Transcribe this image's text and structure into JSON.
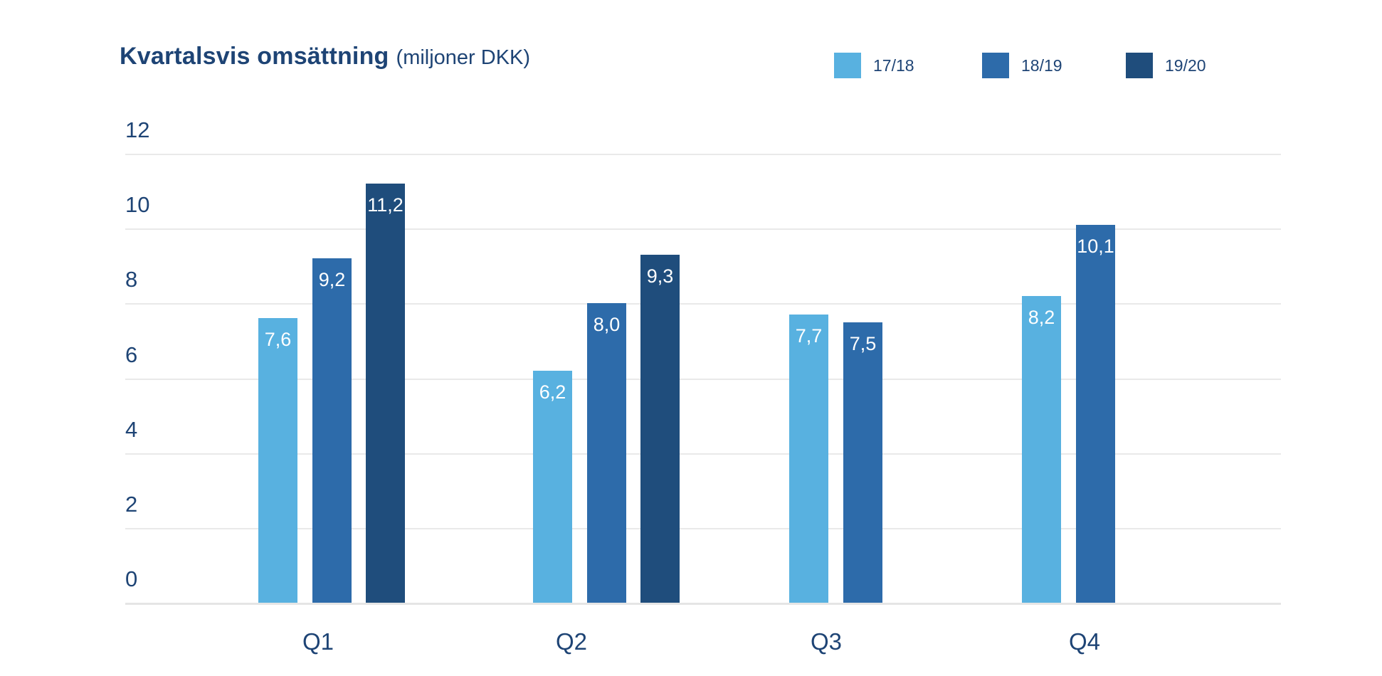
{
  "title": "Kvartalsvis omsättning",
  "title_suffix": "(miljoner DKK)",
  "colors": {
    "text_navy": "#1e4475",
    "series_17_18": "#58b1e0",
    "series_18_19": "#2d6baa",
    "series_19_20": "#1f4d7c",
    "gridline": "#e9e9e9",
    "baseline": "#e5e5e5",
    "bar_value_text": "#ffffff"
  },
  "legend": [
    {
      "label": "17/18",
      "color": "#58b1e0"
    },
    {
      "label": "18/19",
      "color": "#2d6baa"
    },
    {
      "label": "19/20",
      "color": "#1f4d7c"
    }
  ],
  "chart_data": {
    "type": "bar",
    "title": "Kvartalsvis omsättning (miljoner DKK)",
    "xlabel": "",
    "ylabel": "",
    "categories": [
      "Q1",
      "Q2",
      "Q3",
      "Q4"
    ],
    "series": [
      {
        "name": "17/18",
        "color": "#58b1e0",
        "values": [
          7.6,
          6.2,
          7.7,
          8.2
        ],
        "labels": [
          "7,6",
          "6,2",
          "7,7",
          "8,2"
        ]
      },
      {
        "name": "18/19",
        "color": "#2d6baa",
        "values": [
          9.2,
          8.0,
          7.5,
          10.1
        ],
        "labels": [
          "9,2",
          "8,0",
          "7,5",
          "10,1"
        ]
      },
      {
        "name": "19/20",
        "color": "#1f4d7c",
        "values": [
          11.2,
          9.3,
          null,
          null
        ],
        "labels": [
          "11,2",
          "9,3",
          null,
          null
        ]
      }
    ],
    "y_ticks": [
      0,
      2,
      4,
      6,
      8,
      10,
      12
    ],
    "ylim": [
      0,
      12
    ],
    "grid": true,
    "legend_position": "top-right"
  }
}
